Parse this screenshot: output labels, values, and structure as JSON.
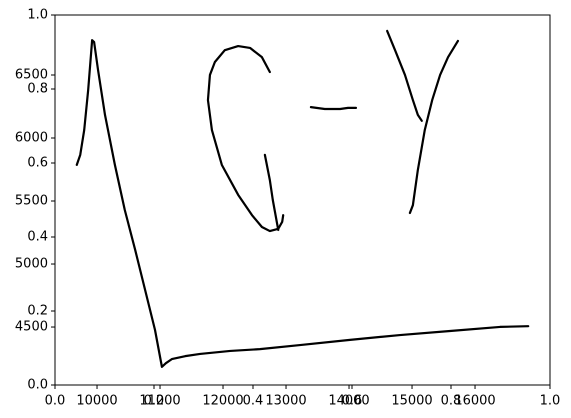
{
  "chart_data": [
    {
      "type": "line",
      "xlim": [
        0,
        1
      ],
      "ylim": [
        0,
        1
      ],
      "xticks": [
        {
          "value": 0,
          "label": "0.0"
        },
        {
          "value": 0.2,
          "label": "0.2"
        },
        {
          "value": 0.4,
          "label": "0.4"
        },
        {
          "value": 0.6,
          "label": "0.6"
        },
        {
          "value": 0.8,
          "label": "0.8"
        },
        {
          "value": 1,
          "label": "1.0"
        }
      ],
      "yticks": [
        {
          "value": 0,
          "label": "0.0"
        },
        {
          "value": 0.2,
          "label": "0.2"
        },
        {
          "value": 0.4,
          "label": "0.4"
        },
        {
          "value": 0.6,
          "label": "0.6"
        },
        {
          "value": 0.8,
          "label": "0.8"
        },
        {
          "value": 1,
          "label": "1.0"
        }
      ],
      "series": [
        {
          "color": "#000000",
          "x": [
            0.044,
            0.051,
            0.059,
            0.067,
            0.075,
            0.079,
            0.087,
            0.101,
            0.121,
            0.141,
            0.162,
            0.182,
            0.202,
            0.216,
            0.224,
            0.236,
            0.263,
            0.293,
            0.354,
            0.414,
            0.495,
            0.596,
            0.697,
            0.798,
            0.899,
            0.956
          ],
          "values": [
            0.595,
            0.622,
            0.689,
            0.797,
            0.932,
            0.927,
            0.851,
            0.73,
            0.595,
            0.473,
            0.365,
            0.257,
            0.149,
            0.049,
            0.059,
            0.07,
            0.078,
            0.084,
            0.092,
            0.097,
            0.108,
            0.122,
            0.135,
            0.146,
            0.157,
            0.159
          ]
        },
        {
          "color": "#000000",
          "x": [
            0.434,
            0.418,
            0.394,
            0.37,
            0.343,
            0.323,
            0.313,
            0.309,
            0.317,
            0.337,
            0.37,
            0.398,
            0.418,
            0.434,
            0.451,
            0.459,
            0.461
          ],
          "values": [
            0.846,
            0.886,
            0.911,
            0.916,
            0.905,
            0.873,
            0.838,
            0.77,
            0.689,
            0.595,
            0.514,
            0.459,
            0.427,
            0.416,
            0.422,
            0.441,
            0.459
          ]
        },
        {
          "color": "#000000",
          "x": [
            0.424,
            0.434,
            0.44,
            0.451
          ],
          "values": [
            0.622,
            0.554,
            0.5,
            0.419
          ]
        },
        {
          "color": "#000000",
          "x": [
            0.517,
            0.545,
            0.576,
            0.592,
            0.608
          ],
          "values": [
            0.751,
            0.746,
            0.746,
            0.749,
            0.749
          ]
        },
        {
          "color": "#000000",
          "x": [
            0.671,
            0.687,
            0.707,
            0.723,
            0.733,
            0.741
          ],
          "values": [
            0.957,
            0.905,
            0.838,
            0.77,
            0.73,
            0.714
          ]
        },
        {
          "color": "#000000",
          "x": [
            0.814,
            0.794,
            0.778,
            0.762,
            0.747,
            0.733,
            0.723,
            0.717
          ],
          "values": [
            0.93,
            0.886,
            0.838,
            0.77,
            0.689,
            0.581,
            0.486,
            0.465
          ]
        }
      ]
    },
    {
      "type": "axes",
      "xlim": [
        9333,
        17190
      ],
      "ylim": [
        4040,
        6976
      ],
      "xticks": [
        10000,
        11000,
        12000,
        13000,
        14000,
        15000,
        16000
      ],
      "yticks": [
        4500,
        5000,
        5500,
        6000,
        6500
      ]
    }
  ]
}
